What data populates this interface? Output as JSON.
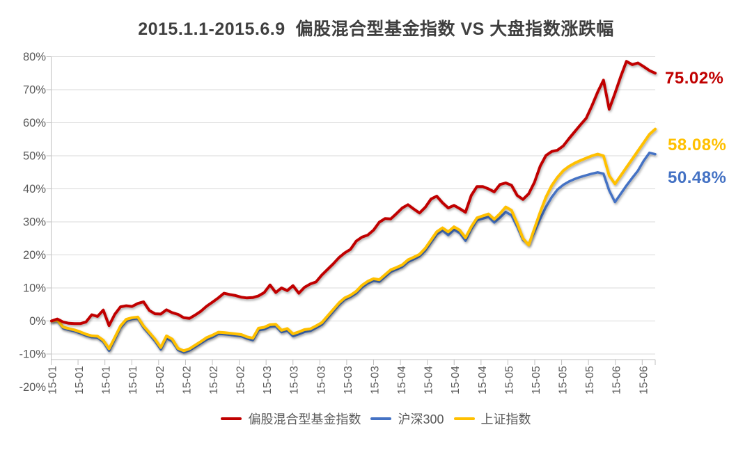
{
  "chart_data": {
    "type": "line",
    "title": "2015.1.1-2015.6.9  偏股混合型基金指数 VS 大盘指数涨跌幅",
    "x_axis": {
      "tick_labels": [
        "15-01",
        "15-01",
        "15-01",
        "15-01",
        "15-02",
        "15-02",
        "15-02",
        "15-02",
        "15-03",
        "15-03",
        "15-03",
        "15-03",
        "15-03",
        "15-04",
        "15-04",
        "15-04",
        "15-04",
        "15-05",
        "15-05",
        "15-05",
        "15-05",
        "15-06",
        "15-06"
      ]
    },
    "y_axis": {
      "unit": "%",
      "min": -20,
      "max": 80,
      "step": 10,
      "tick_labels": [
        "80%",
        "70%",
        "60%",
        "50%",
        "40%",
        "30%",
        "20%",
        "10%",
        "0%",
        "-10%",
        "-20%"
      ]
    },
    "grid": true,
    "legend_position": "bottom",
    "colors": {
      "grid": "#d9d9d9",
      "axis": "#bfbfbf",
      "axis_text": "#595959",
      "title_text": "#3f3f3f"
    },
    "series": [
      {
        "name": "偏股混合型基金指数",
        "color": "#c00000",
        "end_label": "75.02%",
        "end_value": 75.02,
        "values": [
          0.0,
          0.6,
          -0.3,
          -0.7,
          -0.8,
          -0.8,
          -0.3,
          1.9,
          1.4,
          3.3,
          -1.4,
          2.0,
          4.3,
          4.6,
          4.4,
          5.3,
          5.8,
          3.2,
          2.2,
          2.1,
          3.4,
          2.5,
          2.0,
          1.0,
          0.8,
          1.8,
          3.0,
          4.5,
          5.7,
          7.0,
          8.4,
          8.0,
          7.7,
          7.2,
          7.0,
          7.1,
          7.6,
          8.6,
          10.9,
          8.6,
          10.0,
          9.2,
          10.7,
          8.4,
          10.2,
          11.2,
          11.8,
          13.9,
          15.6,
          17.3,
          19.2,
          20.6,
          21.7,
          24.2,
          25.4,
          26.0,
          27.5,
          29.9,
          31.0,
          30.9,
          32.5,
          34.2,
          35.2,
          33.9,
          32.7,
          34.4,
          36.9,
          37.8,
          35.8,
          34.2,
          35.0,
          34.0,
          32.9,
          38.0,
          40.7,
          40.7,
          40.0,
          39.1,
          41.3,
          41.8,
          41.1,
          38.0,
          36.8,
          38.5,
          42.0,
          46.9,
          50.1,
          51.3,
          51.7,
          53.0,
          55.2,
          57.3,
          59.4,
          61.4,
          65.2,
          69.3,
          72.9,
          64.1,
          68.9,
          74.0,
          78.6,
          77.6,
          78.1,
          77.0,
          75.8,
          75.02
        ]
      },
      {
        "name": "沪深300",
        "color": "#4472c4",
        "end_label": "50.48%",
        "end_value": 50.48,
        "values": [
          0.0,
          0.2,
          -2.2,
          -2.7,
          -3.1,
          -3.7,
          -4.4,
          -4.9,
          -5.0,
          -6.3,
          -9.0,
          -5.6,
          -2.0,
          0.0,
          0.6,
          0.8,
          -2.0,
          -4.0,
          -6.1,
          -8.6,
          -5.2,
          -6.2,
          -8.8,
          -9.5,
          -8.9,
          -7.8,
          -6.7,
          -5.6,
          -4.9,
          -3.9,
          -4.0,
          -4.2,
          -4.4,
          -4.6,
          -5.3,
          -5.8,
          -2.8,
          -2.5,
          -1.7,
          -1.6,
          -3.4,
          -2.9,
          -4.6,
          -4.0,
          -3.3,
          -3.0,
          -2.1,
          -1.1,
          0.9,
          2.9,
          4.9,
          6.5,
          7.3,
          8.4,
          10.2,
          11.4,
          12.2,
          11.9,
          13.4,
          14.9,
          15.6,
          16.4,
          17.9,
          18.7,
          19.6,
          21.3,
          23.8,
          26.2,
          27.4,
          26.0,
          27.6,
          26.6,
          24.3,
          27.8,
          30.5,
          31.0,
          31.5,
          29.8,
          31.3,
          33.0,
          32.0,
          28.5,
          24.5,
          23.3,
          27.0,
          31.0,
          34.5,
          37.5,
          39.8,
          41.2,
          42.2,
          43.0,
          43.6,
          44.1,
          44.6,
          45.0,
          44.6,
          39.5,
          36.0,
          38.5,
          41.0,
          43.3,
          45.5,
          48.5,
          50.9,
          50.48
        ]
      },
      {
        "name": "上证指数",
        "color": "#ffc000",
        "end_label": "58.08%",
        "end_value": 58.08,
        "values": [
          0.0,
          0.3,
          -1.8,
          -2.3,
          -2.7,
          -3.3,
          -4.0,
          -4.5,
          -4.6,
          -5.8,
          -8.4,
          -5.0,
          -1.5,
          0.5,
          1.0,
          1.2,
          -1.5,
          -3.5,
          -5.5,
          -8.0,
          -4.5,
          -5.5,
          -8.3,
          -9.0,
          -8.4,
          -7.3,
          -6.2,
          -5.0,
          -4.3,
          -3.4,
          -3.5,
          -3.7,
          -3.9,
          -4.1,
          -4.8,
          -5.2,
          -2.2,
          -1.9,
          -1.1,
          -1.0,
          -2.8,
          -2.3,
          -3.9,
          -3.3,
          -2.6,
          -2.4,
          -1.5,
          -0.5,
          1.5,
          3.5,
          5.5,
          7.0,
          7.8,
          9.0,
          10.8,
          12.0,
          12.8,
          12.5,
          14.0,
          15.5,
          16.2,
          17.0,
          18.5,
          19.3,
          20.2,
          22.0,
          24.5,
          27.0,
          28.2,
          27.0,
          28.5,
          27.5,
          25.2,
          28.5,
          31.2,
          31.8,
          32.4,
          30.8,
          32.5,
          34.5,
          33.5,
          29.5,
          25.0,
          23.0,
          28.0,
          33.0,
          37.5,
          41.0,
          43.5,
          45.5,
          46.8,
          47.8,
          48.6,
          49.3,
          50.0,
          50.5,
          50.0,
          44.0,
          41.5,
          44.0,
          46.5,
          49.0,
          51.5,
          54.0,
          56.5,
          58.08
        ]
      }
    ]
  }
}
